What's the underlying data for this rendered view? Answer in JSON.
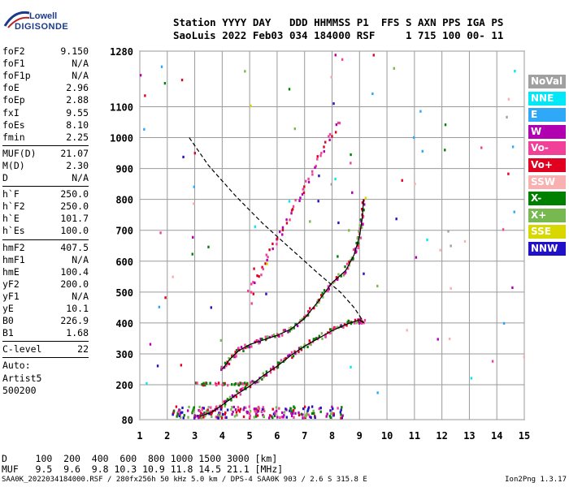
{
  "logo": {
    "line1": "Lowell",
    "line2": "DIGISONDE"
  },
  "header": {
    "line1": "Station YYYY DAY   DDD HHMMSS P1  FFS S AXN PPS IGA PS",
    "line2": "SaoLuis 2022 Feb03 034 184000 RSF     1 715 100 00- 11"
  },
  "params": {
    "group1": [
      {
        "k": "foF2",
        "v": "9.150"
      },
      {
        "k": "foF1",
        "v": "N/A"
      },
      {
        "k": "foF1p",
        "v": "N/A"
      },
      {
        "k": "foE",
        "v": "2.96"
      },
      {
        "k": "foEp",
        "v": "2.88"
      },
      {
        "k": "fxI",
        "v": "9.55"
      },
      {
        "k": "foEs",
        "v": "8.10"
      },
      {
        "k": "fmin",
        "v": "2.25"
      }
    ],
    "group2": [
      {
        "k": "MUF(D)",
        "v": "21.07"
      },
      {
        "k": "M(D)",
        "v": "2.30"
      },
      {
        "k": "D",
        "v": "N/A"
      }
    ],
    "group3": [
      {
        "k": "h`F",
        "v": "250.0"
      },
      {
        "k": "h`F2",
        "v": "250.0"
      },
      {
        "k": "h`E",
        "v": "101.7"
      },
      {
        "k": "h`Es",
        "v": "100.0"
      }
    ],
    "group4": [
      {
        "k": "hmF2",
        "v": "407.5"
      },
      {
        "k": "hmF1",
        "v": "N/A"
      },
      {
        "k": "hmE",
        "v": "100.4"
      },
      {
        "k": "yF2",
        "v": "200.0"
      },
      {
        "k": "yF1",
        "v": "N/A"
      },
      {
        "k": "yE",
        "v": "10.1"
      },
      {
        "k": "B0",
        "v": "226.9"
      },
      {
        "k": "B1",
        "v": "1.68"
      }
    ],
    "clevel": {
      "k": "C-level",
      "v": "22"
    },
    "auto": [
      "Auto:",
      "Artist5",
      "500200"
    ]
  },
  "legend": [
    {
      "label": "NoVal",
      "color": "#a0a0a0"
    },
    {
      "label": "NNE",
      "color": "#00e8f8"
    },
    {
      "label": "E",
      "color": "#30a8f8"
    },
    {
      "label": "W",
      "color": "#b000b0"
    },
    {
      "label": "Vo-",
      "color": "#f04098"
    },
    {
      "label": "Vo+",
      "color": "#e00020"
    },
    {
      "label": "SSW",
      "color": "#f8b0b0"
    },
    {
      "label": "X-",
      "color": "#008000"
    },
    {
      "label": "X+",
      "color": "#78b850"
    },
    {
      "label": "SSE",
      "color": "#d8d800"
    },
    {
      "label": "NNW",
      "color": "#2010c8"
    }
  ],
  "footer": {
    "line1": "D     100  200  400  600  800 1000 1500 3000 [km]",
    "line2": "MUF   9.5  9.6  9.8 10.3 10.9 11.8 14.5 21.1 [MHz]",
    "line3": "SAA0K_2022034184000.RSF / 280fx256h 50 kHz 5.0 km / DPS-4 SAA0K 903 / 2.6 S 315.8 E",
    "version": "Ion2Png 1.3.17"
  },
  "chart_data": {
    "type": "scatter",
    "title": "",
    "xlabel": "",
    "ylabel": "",
    "xlim": [
      1,
      15
    ],
    "ylim": [
      80,
      1280
    ],
    "x_ticks": [
      1,
      2,
      3,
      4,
      5,
      6,
      7,
      8,
      9,
      10,
      11,
      12,
      13,
      14,
      15
    ],
    "y_ticks": [
      80,
      200,
      300,
      400,
      500,
      600,
      700,
      800,
      900,
      1000,
      1100,
      1280
    ],
    "grid": true,
    "series": [
      {
        "line_style": "solid",
        "color": "#000000",
        "x": [
          3.2,
          3.6,
          4.0,
          4.5,
          5.0,
          5.5,
          6.0,
          6.5,
          7.0,
          7.5,
          8.0,
          8.5,
          9.0,
          9.15
        ],
        "y": [
          92,
          105,
          130,
          165,
          195,
          230,
          260,
          295,
          325,
          350,
          375,
          395,
          410,
          400
        ]
      },
      {
        "line_style": "solid",
        "color": "#000000",
        "x": [
          4.0,
          4.3,
          4.6,
          5.0,
          5.5,
          6.0,
          6.5,
          7.0,
          7.5,
          8.0,
          8.5,
          8.8,
          9.0,
          9.1,
          9.15
        ],
        "y": [
          250,
          285,
          310,
          330,
          345,
          360,
          380,
          415,
          470,
          530,
          570,
          620,
          680,
          740,
          800
        ]
      },
      {
        "line_style": "dashed",
        "color": "#000000",
        "x": [
          2.8,
          3.5,
          4.5,
          5.5,
          6.5,
          7.5,
          8.3,
          8.8,
          9.1,
          9.15
        ],
        "y": [
          1000,
          910,
          810,
          720,
          640,
          560,
          500,
          450,
          410,
          400
        ]
      }
    ]
  }
}
